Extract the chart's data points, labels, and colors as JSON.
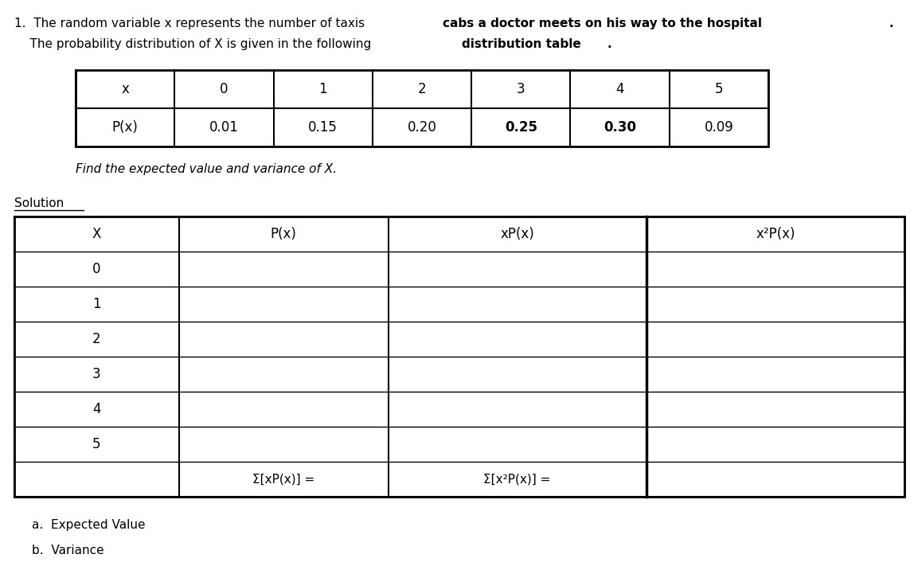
{
  "title_normal1": "1.  The random variable x represents the number of taxis ",
  "title_bold1": "cabs a doctor meets on his way to the hospital",
  "title_end1": ".",
  "title_normal2": "    The probability distribution of X is given in the following ",
  "title_bold2": "distribution table",
  "title_end2": ".",
  "dist_headers": [
    "x",
    "0",
    "1",
    "2",
    "3",
    "4",
    "5"
  ],
  "dist_px_label": "P(x)",
  "dist_values": [
    "0.01",
    "0.15",
    "0.20",
    "0.25",
    "0.30",
    "0.09"
  ],
  "dist_bold_values": [
    "0.25",
    "0.30"
  ],
  "find_text": "Find the expected value and variance of X.",
  "solution_label": "Solution",
  "sol_col_headers": [
    "X",
    "P(x)",
    "xP(x)",
    "x²P(x)"
  ],
  "sol_x_values": [
    "0",
    "1",
    "2",
    "3",
    "4",
    "5"
  ],
  "sum_xpx": "Σ[xP(x)] =",
  "sum_x2px": "Σ[x²P(x)] =",
  "footer_a": "a.  Expected Value",
  "footer_b": "b.  Variance",
  "bg_color": "#ffffff",
  "text_color": "#000000"
}
